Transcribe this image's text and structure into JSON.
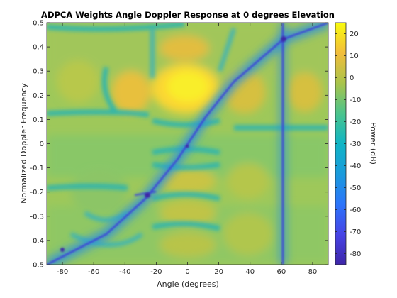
{
  "chart_data": {
    "type": "heatmap",
    "title": "ADPCA Weights Angle Doppler Response at 0 degrees Elevation",
    "xlabel": "Angle (degrees)",
    "ylabel": "Normalized Doppler Frequency",
    "colorbar_label": "Power (dB)",
    "xlim": [
      -90,
      90
    ],
    "ylim": [
      -0.5,
      0.5
    ],
    "clim": [
      -85,
      25
    ],
    "xticks": [
      -80,
      -60,
      -40,
      -20,
      0,
      20,
      40,
      60,
      80
    ],
    "yticks": [
      -0.5,
      -0.4,
      -0.3,
      -0.2,
      -0.1,
      0,
      0.1,
      0.2,
      0.3,
      0.4,
      0.5
    ],
    "colorbar_ticks": [
      -80,
      -70,
      -60,
      -50,
      -40,
      -30,
      -20,
      -10,
      0,
      10,
      20
    ],
    "colormap": "parula",
    "colors": {
      "low": "#3e26a8",
      "mid": "#21b2aa",
      "high": "#f9fb0e"
    },
    "features": [
      {
        "kind": "clutter-ridge",
        "description": "diagonal null from lower-left to upper-right",
        "x": [
          -90,
          90
        ],
        "y": [
          -0.5,
          0.5
        ]
      },
      {
        "kind": "jammer-null",
        "description": "vertical null at 60 degrees",
        "x": 60
      }
    ]
  }
}
